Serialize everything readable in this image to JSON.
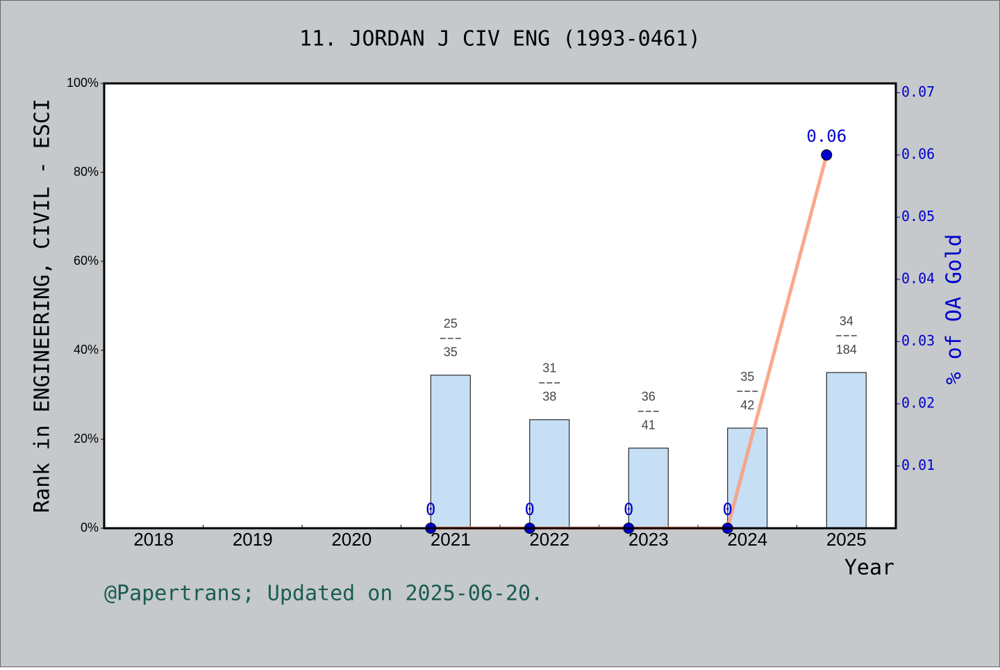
{
  "chart_data": {
    "type": "bar-line",
    "title": "11. JORDAN J CIV ENG (1993-0461)",
    "x_label": "Year",
    "y_label": "Rank in ENGINEERING, CIVIL - ESCI",
    "y2_label": "% of OA Gold",
    "footer": "@Papertrans; Updated on 2025-06-20.",
    "categories": [
      "2018",
      "2019",
      "2020",
      "2021",
      "2022",
      "2023",
      "2024",
      "2025"
    ],
    "ylim": [
      0,
      100
    ],
    "yticks": [
      {
        "value": 0,
        "label": "0%"
      },
      {
        "value": 20,
        "label": "20%"
      },
      {
        "value": 40,
        "label": "40%"
      },
      {
        "value": 60,
        "label": "60%"
      },
      {
        "value": 80,
        "label": "80%"
      },
      {
        "value": 100,
        "label": "100%"
      }
    ],
    "y2lim": [
      0,
      0.0715
    ],
    "y2ticks": [
      0.01,
      0.02,
      0.03,
      0.04,
      0.05,
      0.06,
      0.07
    ],
    "series": [
      {
        "type": "bar",
        "color": "#c6dff5",
        "values": [
          null,
          null,
          null,
          34.4,
          24.4,
          18.0,
          22.5,
          35.0
        ],
        "bar_labels": [
          null,
          null,
          null,
          {
            "top": "25",
            "bottom": "35"
          },
          {
            "top": "31",
            "bottom": "38"
          },
          {
            "top": "36",
            "bottom": "41"
          },
          {
            "top": "35",
            "bottom": "42"
          },
          {
            "top": "34",
            "bottom": "184"
          }
        ]
      },
      {
        "type": "line",
        "axis": "y2",
        "color": "#f9a07f",
        "marker_color": "#0000cc",
        "values": [
          null,
          null,
          null,
          0,
          0,
          0,
          0,
          0.06
        ]
      }
    ]
  }
}
